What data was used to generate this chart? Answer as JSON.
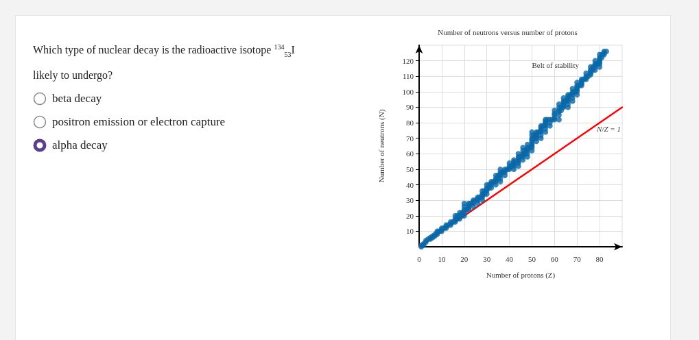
{
  "chart_data": {
    "type": "scatter",
    "title": "Number of neutrons versus number of protons",
    "xlabel": "Number of protons (Z)",
    "ylabel": "Number of neutrons (N)",
    "annotations": [
      "Which type of nuclear decay is the radioactive isotope $^{134}$$_{53}$I likely to undergo?",
      "beta decay",
      "positron emission or electron capture",
      "alpha decay"
    ],
    "xlim": [
      0,
      90
    ],
    "ylim": [
      0,
      130
    ],
    "xticks": [
      0,
      10,
      20,
      30,
      40,
      50,
      60,
      70,
      80
    ],
    "yticks": [
      10,
      20,
      30,
      40,
      50,
      60,
      70,
      80,
      90,
      100,
      110,
      120
    ],
    "grid": true,
    "marker": "circle",
    "series": [
      {
        "name": "Belt of stability",
        "color": "#0a68a8",
        "x": [
          1,
          1,
          2,
          2,
          3,
          3,
          4,
          5,
          5,
          6,
          6,
          7,
          7,
          8,
          8,
          8,
          9,
          10,
          10,
          10,
          11,
          12,
          12,
          12,
          13,
          14,
          14,
          14,
          15,
          16,
          16,
          16,
          16,
          17,
          17,
          18,
          18,
          18,
          19,
          19,
          20,
          20,
          20,
          20,
          20,
          20,
          21,
          22,
          22,
          22,
          22,
          22,
          23,
          24,
          24,
          24,
          24,
          25,
          26,
          26,
          26,
          26,
          27,
          28,
          28,
          28,
          28,
          28,
          29,
          29,
          30,
          30,
          30,
          30,
          30,
          31,
          31,
          32,
          32,
          32,
          32,
          33,
          34,
          34,
          34,
          34,
          34,
          35,
          35,
          36,
          36,
          36,
          36,
          36,
          36,
          37,
          38,
          38,
          38,
          38,
          39,
          40,
          40,
          40,
          40,
          41,
          42,
          42,
          42,
          42,
          42,
          42,
          44,
          44,
          44,
          44,
          44,
          44,
          44,
          45,
          46,
          46,
          46,
          46,
          46,
          46,
          47,
          47,
          48,
          48,
          48,
          48,
          48,
          48,
          49,
          50,
          50,
          50,
          50,
          50,
          50,
          50,
          50,
          50,
          50,
          51,
          51,
          52,
          52,
          52,
          52,
          52,
          52,
          53,
          54,
          54,
          54,
          54,
          54,
          54,
          54,
          55,
          56,
          56,
          56,
          56,
          56,
          56,
          56,
          57,
          58,
          58,
          58,
          59,
          60,
          60,
          60,
          60,
          60,
          62,
          62,
          62,
          62,
          62,
          62,
          63,
          63,
          64,
          64,
          64,
          64,
          64,
          64,
          65,
          66,
          66,
          66,
          66,
          66,
          66,
          66,
          67,
          68,
          68,
          68,
          68,
          68,
          68,
          69,
          70,
          70,
          70,
          70,
          70,
          70,
          70,
          71,
          72,
          72,
          72,
          72,
          72,
          73,
          74,
          74,
          74,
          74,
          75,
          76,
          76,
          76,
          76,
          76,
          77,
          77,
          78,
          78,
          78,
          78,
          78,
          79,
          80,
          80,
          80,
          80,
          80,
          80,
          80,
          81,
          81,
          82,
          82,
          82,
          83
        ],
        "values": [
          0,
          1,
          1,
          2,
          3,
          4,
          5,
          5,
          6,
          6,
          7,
          7,
          8,
          8,
          9,
          10,
          10,
          10,
          11,
          12,
          12,
          12,
          13,
          14,
          14,
          14,
          15,
          16,
          16,
          16,
          17,
          18,
          20,
          18,
          20,
          18,
          20,
          22,
          20,
          22,
          20,
          22,
          23,
          24,
          26,
          28,
          24,
          24,
          25,
          26,
          27,
          28,
          28,
          26,
          28,
          29,
          30,
          30,
          28,
          30,
          31,
          32,
          32,
          30,
          32,
          33,
          34,
          36,
          34,
          36,
          34,
          36,
          37,
          38,
          40,
          38,
          40,
          38,
          40,
          41,
          42,
          42,
          40,
          42,
          43,
          44,
          46,
          44,
          46,
          42,
          44,
          46,
          47,
          48,
          50,
          48,
          46,
          48,
          49,
          50,
          50,
          50,
          51,
          52,
          54,
          52,
          50,
          52,
          53,
          54,
          55,
          56,
          52,
          54,
          55,
          56,
          57,
          58,
          60,
          58,
          56,
          58,
          59,
          60,
          62,
          64,
          60,
          62,
          58,
          60,
          62,
          63,
          64,
          66,
          64,
          62,
          64,
          65,
          66,
          67,
          68,
          69,
          70,
          72,
          74,
          70,
          72,
          68,
          70,
          71,
          72,
          73,
          74,
          74,
          70,
          72,
          74,
          75,
          76,
          77,
          78,
          78,
          74,
          76,
          78,
          79,
          80,
          81,
          82,
          82,
          78,
          80,
          82,
          82,
          82,
          83,
          85,
          86,
          88,
          82,
          85,
          87,
          88,
          90,
          92,
          88,
          90,
          90,
          91,
          92,
          93,
          94,
          96,
          94,
          90,
          92,
          94,
          95,
          96,
          97,
          98,
          98,
          94,
          96,
          98,
          99,
          100,
          102,
          100,
          98,
          100,
          101,
          102,
          103,
          104,
          106,
          104,
          104,
          105,
          106,
          107,
          108,
          108,
          108,
          109,
          110,
          112,
          110,
          111,
          112,
          113,
          114,
          116,
          114,
          116,
          114,
          116,
          117,
          118,
          120,
          118,
          116,
          118,
          119,
          120,
          121,
          122,
          124,
          122,
          124,
          124,
          125,
          126,
          126
        ]
      },
      {
        "name": "N/Z = 1",
        "type": "line",
        "color": "#ff0000",
        "marker": "none",
        "line_style": "solid",
        "x": [
          0,
          90
        ],
        "values": [
          0,
          90
        ]
      }
    ]
  }
}
